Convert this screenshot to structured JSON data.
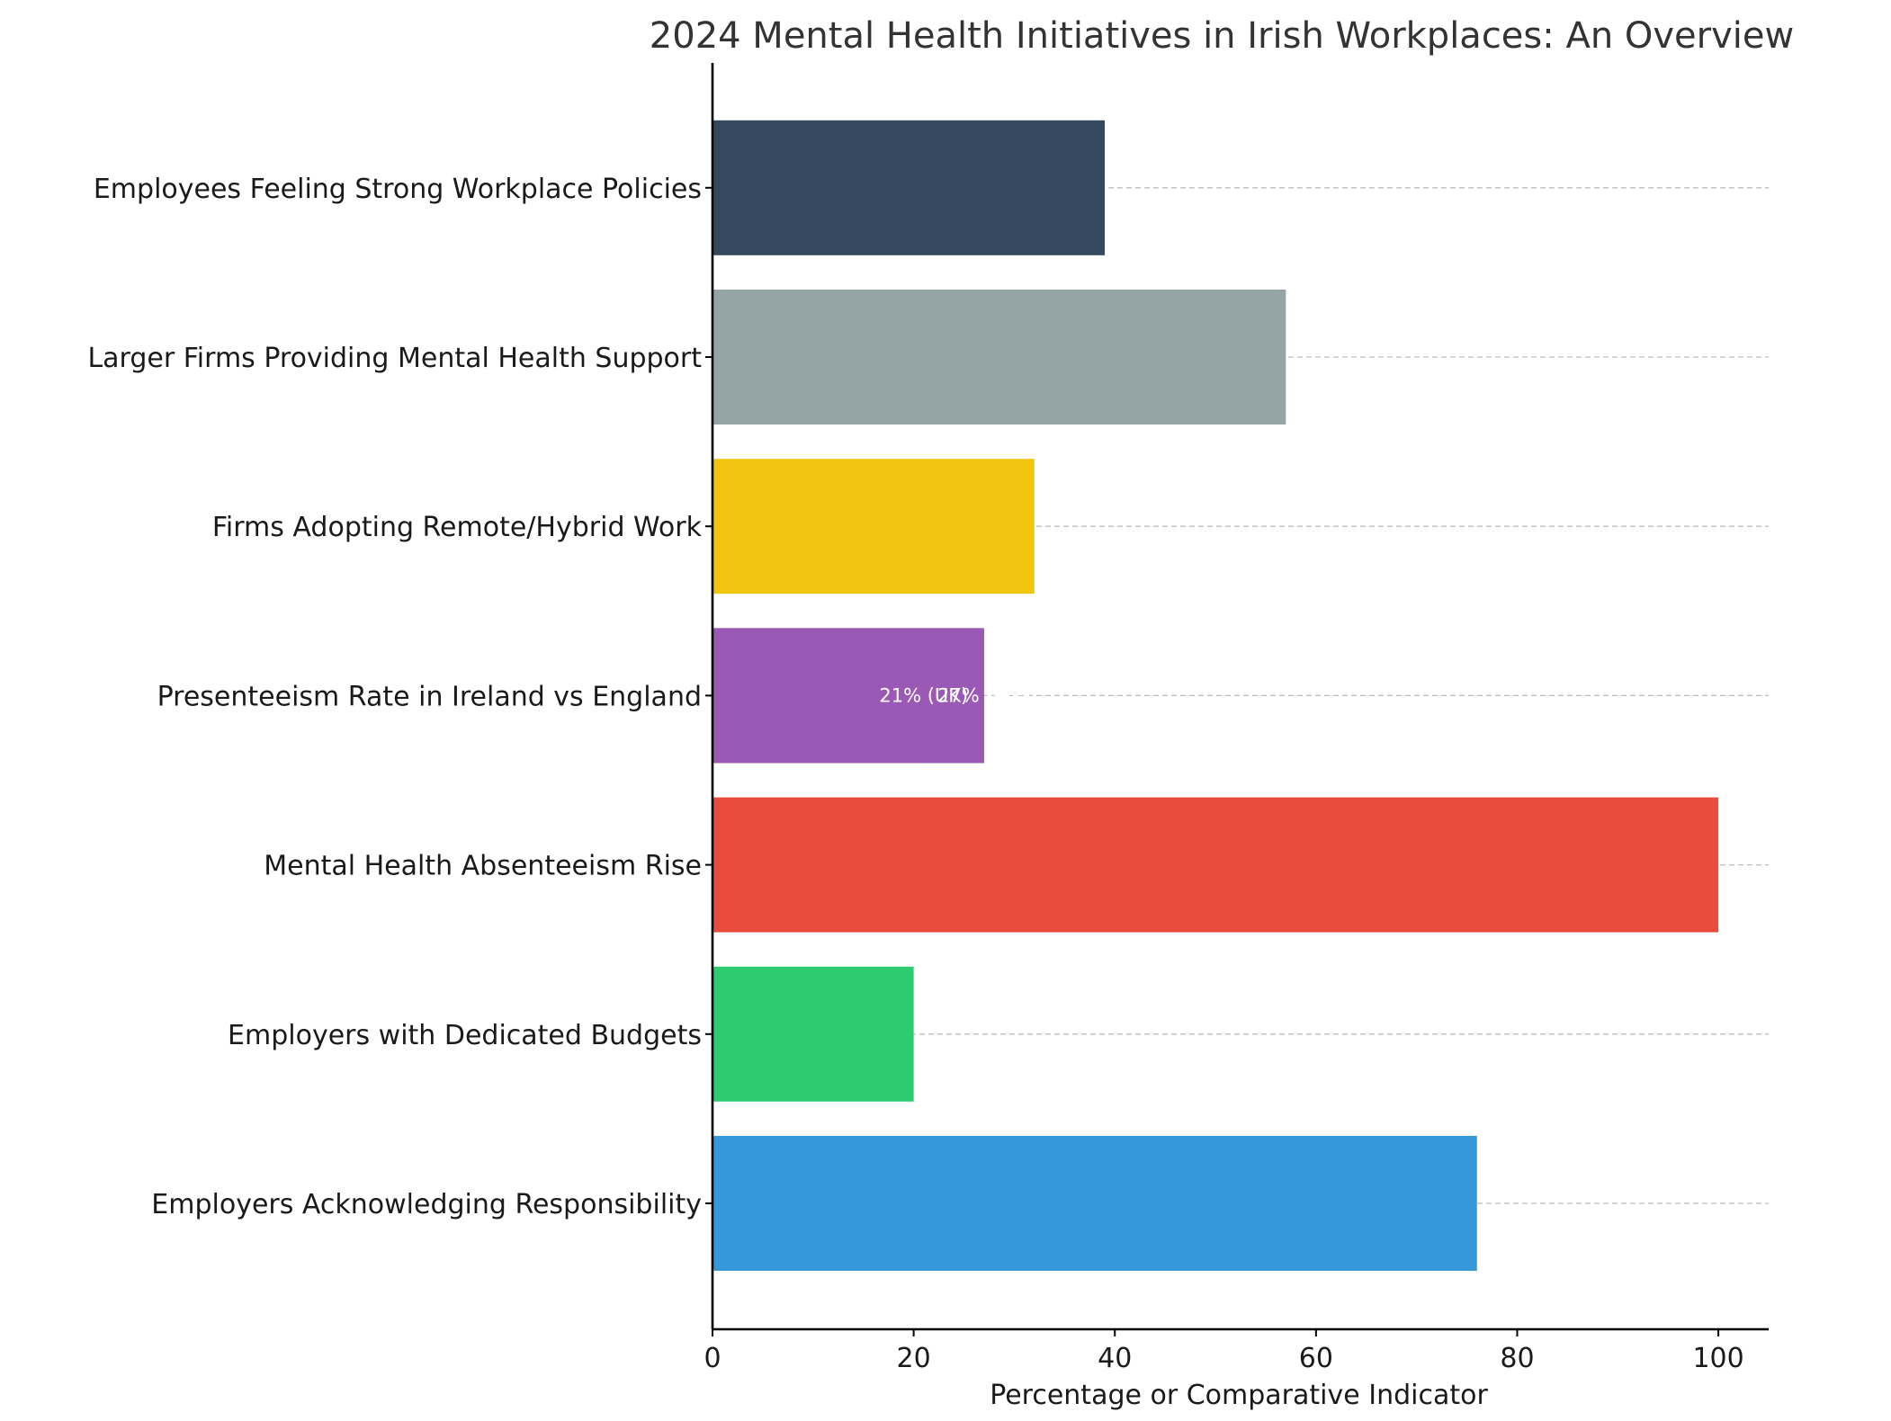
{
  "chart_data": {
    "type": "bar",
    "orientation": "horizontal",
    "title": "2024 Mental Health Initiatives in Irish Workplaces: An Overview",
    "xlabel": "Percentage or Comparative Indicator",
    "ylabel": "",
    "xlim": [
      0,
      105
    ],
    "xticks": [
      0,
      20,
      40,
      60,
      80,
      100
    ],
    "grid": "x-dashed",
    "categories": [
      "Employers Acknowledging Responsibility",
      "Employers with Dedicated Budgets",
      "Mental Health Absenteeism Rise",
      "Presenteeism Rate in Ireland vs England",
      "Firms Adopting Remote/Hybrid Work",
      "Larger Firms Providing Mental Health Support",
      "Employees Feeling Strong Workplace Policies"
    ],
    "bars": [
      {
        "category": "Employers Acknowledging Responsibility",
        "value": 76,
        "color": "#3498db"
      },
      {
        "category": "Employers with Dedicated Budgets",
        "value": 20,
        "color": "#2ecc71"
      },
      {
        "category": "Mental Health Absenteeism Rise",
        "value": 100,
        "color": "#e74c3c"
      },
      {
        "category": "Presenteeism Rate in Ireland vs England",
        "value": 21,
        "color": "#e74c3c",
        "label": "21% (UK)"
      },
      {
        "category": "Presenteeism Rate in Ireland vs England",
        "value": 27,
        "color": "#9b59b6",
        "label": "27% (IRE)"
      },
      {
        "category": "Firms Adopting Remote/Hybrid Work",
        "value": 32,
        "color": "#f1c40f"
      },
      {
        "category": "Larger Firms Providing Mental Health Support",
        "value": 57,
        "color": "#95a5a6"
      },
      {
        "category": "Employees Feeling Strong Workplace Policies",
        "value": 39,
        "color": "#34495e"
      }
    ]
  }
}
